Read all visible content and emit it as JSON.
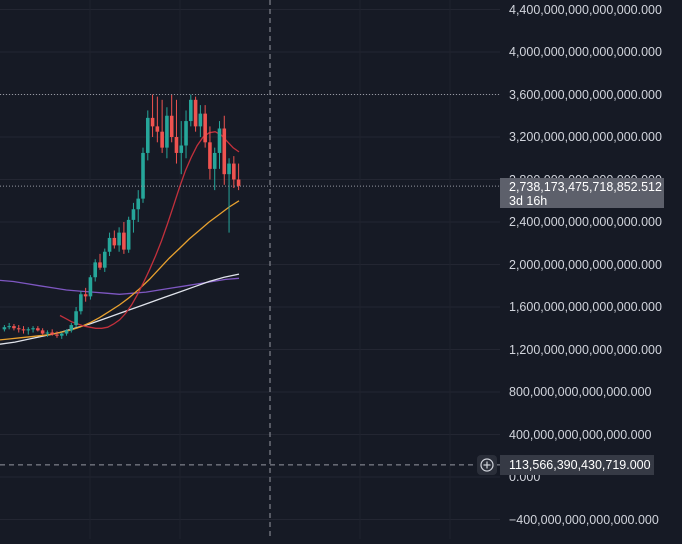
{
  "chart_data": {
    "type": "candlestick",
    "price_scale": {
      "min": -500000000000000000,
      "max": 4500000000000000000,
      "ticks": [
        "4,400,000,000,000,000.000",
        "4,000,000,000,000,000.000",
        "3,600,000,000,000,000.000",
        "3,200,000,000,000,000.000",
        "2,800,000,000,000,000.000",
        "2,400,000,000,000,000.000",
        "2,000,000,000,000,000.000",
        "1,600,000,000,000,000.000",
        "1,200,000,000,000,000.000",
        "800,000,000,000,000.000",
        "400,000,000,000,000.000",
        "0.000",
        "−400,000,000,000,000.000"
      ]
    },
    "last_price": {
      "value_label": "2,738,173,475,718,852.512",
      "countdown": "3d 16h"
    },
    "crosshair_price": {
      "value_label": "113,566,390,430,719.000"
    },
    "colors": {
      "up": "#26a69a",
      "down": "#ef5350",
      "ma_red": "#c2303c",
      "ma_orange": "#e8a12f",
      "ma_white": "#e0e3eb",
      "ma_purple": "#7e57c2"
    },
    "series": {
      "candles_approx": [
        [
          1.39,
          1.43,
          1.37,
          1.41
        ],
        [
          1.41,
          1.45,
          1.39,
          1.42
        ],
        [
          1.42,
          1.44,
          1.38,
          1.4
        ],
        [
          1.4,
          1.43,
          1.36,
          1.39
        ],
        [
          1.39,
          1.42,
          1.35,
          1.38
        ],
        [
          1.38,
          1.41,
          1.34,
          1.39
        ],
        [
          1.39,
          1.42,
          1.36,
          1.4
        ],
        [
          1.4,
          1.42,
          1.37,
          1.38
        ],
        [
          1.38,
          1.4,
          1.34,
          1.35
        ],
        [
          1.35,
          1.38,
          1.32,
          1.36
        ],
        [
          1.36,
          1.39,
          1.33,
          1.34
        ],
        [
          1.34,
          1.37,
          1.31,
          1.33
        ],
        [
          1.33,
          1.36,
          1.3,
          1.35
        ],
        [
          1.35,
          1.39,
          1.33,
          1.38
        ],
        [
          1.38,
          1.45,
          1.36,
          1.43
        ],
        [
          1.43,
          1.6,
          1.41,
          1.56
        ],
        [
          1.56,
          1.75,
          1.53,
          1.72
        ],
        [
          1.72,
          1.78,
          1.65,
          1.7
        ],
        [
          1.7,
          1.9,
          1.67,
          1.88
        ],
        [
          1.88,
          2.05,
          1.84,
          2.02
        ],
        [
          2.02,
          2.1,
          1.95,
          1.97
        ],
        [
          1.97,
          2.15,
          1.93,
          2.12
        ],
        [
          2.12,
          2.3,
          2.08,
          2.25
        ],
        [
          2.25,
          2.32,
          2.15,
          2.18
        ],
        [
          2.18,
          2.35,
          2.12,
          2.3
        ],
        [
          2.3,
          2.4,
          2.1,
          2.14
        ],
        [
          2.14,
          2.45,
          2.11,
          2.42
        ],
        [
          2.42,
          2.58,
          2.3,
          2.52
        ],
        [
          2.52,
          2.7,
          2.4,
          2.62
        ],
        [
          2.62,
          3.1,
          2.58,
          3.05
        ],
        [
          3.05,
          3.45,
          2.98,
          3.38
        ],
        [
          3.38,
          3.6,
          3.2,
          3.3
        ],
        [
          3.3,
          3.58,
          3.15,
          3.25
        ],
        [
          3.25,
          3.55,
          3.05,
          3.1
        ],
        [
          3.1,
          3.48,
          3.0,
          3.4
        ],
        [
          3.4,
          3.6,
          3.15,
          3.2
        ],
        [
          3.2,
          3.55,
          2.95,
          3.05
        ],
        [
          3.05,
          3.35,
          2.85,
          3.12
        ],
        [
          3.12,
          3.45,
          3.0,
          3.35
        ],
        [
          3.35,
          3.6,
          3.3,
          3.55
        ],
        [
          3.55,
          3.58,
          3.25,
          3.3
        ],
        [
          3.3,
          3.5,
          3.2,
          3.42
        ],
        [
          3.42,
          3.5,
          3.1,
          3.15
        ],
        [
          3.15,
          3.3,
          2.8,
          2.9
        ],
        [
          2.9,
          3.1,
          2.7,
          3.05
        ],
        [
          3.05,
          3.35,
          2.9,
          3.28
        ],
        [
          3.28,
          3.4,
          2.75,
          2.85
        ],
        [
          2.85,
          3.0,
          2.3,
          2.95
        ],
        [
          2.95,
          3.02,
          2.72,
          2.8
        ],
        [
          2.8,
          2.95,
          2.7,
          2.74
        ]
      ],
      "ma_red_approx": [
        1.52,
        1.49,
        1.46,
        1.44,
        1.42,
        1.41,
        1.4,
        1.4,
        1.41,
        1.44,
        1.48,
        1.54,
        1.62,
        1.72,
        1.83,
        1.95,
        2.08,
        2.22,
        2.38,
        2.55,
        2.72,
        2.88,
        3.01,
        3.12,
        3.2,
        3.24,
        3.25,
        3.22,
        3.16,
        3.1,
        3.06
      ],
      "ma_orange_approx": [
        1.29,
        1.3,
        1.31,
        1.32,
        1.33,
        1.34,
        1.36,
        1.38,
        1.41,
        1.45,
        1.5,
        1.56,
        1.62,
        1.69,
        1.77,
        1.86,
        1.96,
        2.06,
        2.15,
        2.24,
        2.32,
        2.4,
        2.47,
        2.54,
        2.6
      ],
      "ma_white_approx": [
        1.25,
        1.27,
        1.3,
        1.33,
        1.36,
        1.4,
        1.44,
        1.49,
        1.54,
        1.59,
        1.64,
        1.69,
        1.74,
        1.79,
        1.84,
        1.88,
        1.91
      ],
      "ma_purple_approx": [
        1.85,
        1.84,
        1.82,
        1.8,
        1.78,
        1.76,
        1.75,
        1.74,
        1.73,
        1.72,
        1.73,
        1.74,
        1.76,
        1.78,
        1.8,
        1.82,
        1.84,
        1.86,
        1.87
      ]
    }
  }
}
